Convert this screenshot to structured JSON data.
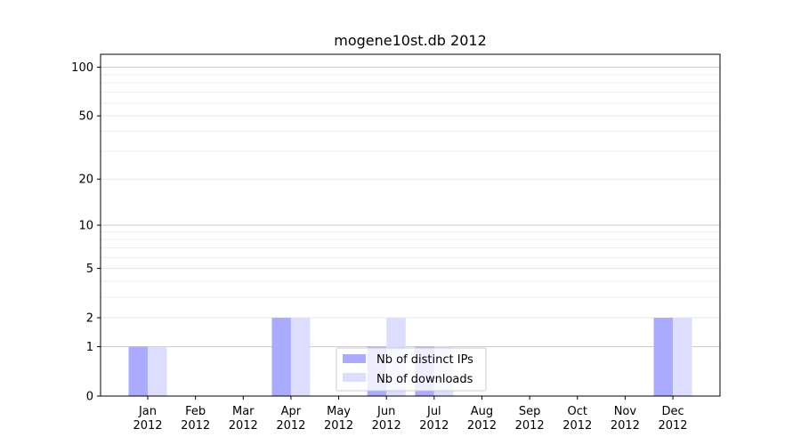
{
  "chart_data": {
    "type": "bar",
    "title": "mogene10st.db 2012",
    "xlabel": "",
    "ylabel": "",
    "categories": [
      [
        "Jan",
        "2012"
      ],
      [
        "Feb",
        "2012"
      ],
      [
        "Mar",
        "2012"
      ],
      [
        "Apr",
        "2012"
      ],
      [
        "May",
        "2012"
      ],
      [
        "Jun",
        "2012"
      ],
      [
        "Jul",
        "2012"
      ],
      [
        "Aug",
        "2012"
      ],
      [
        "Sep",
        "2012"
      ],
      [
        "Oct",
        "2012"
      ],
      [
        "Nov",
        "2012"
      ],
      [
        "Dec",
        "2012"
      ]
    ],
    "series": [
      {
        "name": "Nb of distinct IPs",
        "color": "#aaaaff",
        "values": [
          1,
          0,
          0,
          2,
          0,
          1,
          1,
          0,
          0,
          0,
          0,
          2
        ]
      },
      {
        "name": "Nb of downloads",
        "color": "#ddddff",
        "values": [
          1,
          0,
          0,
          2,
          0,
          2,
          1,
          0,
          0,
          0,
          0,
          2
        ]
      }
    ],
    "y_scale": "symlog",
    "y_ticks": [
      0,
      1,
      2,
      5,
      10,
      20,
      50,
      100
    ],
    "ylim": [
      0,
      120
    ],
    "grid": true,
    "legend_position": "lower center"
  }
}
